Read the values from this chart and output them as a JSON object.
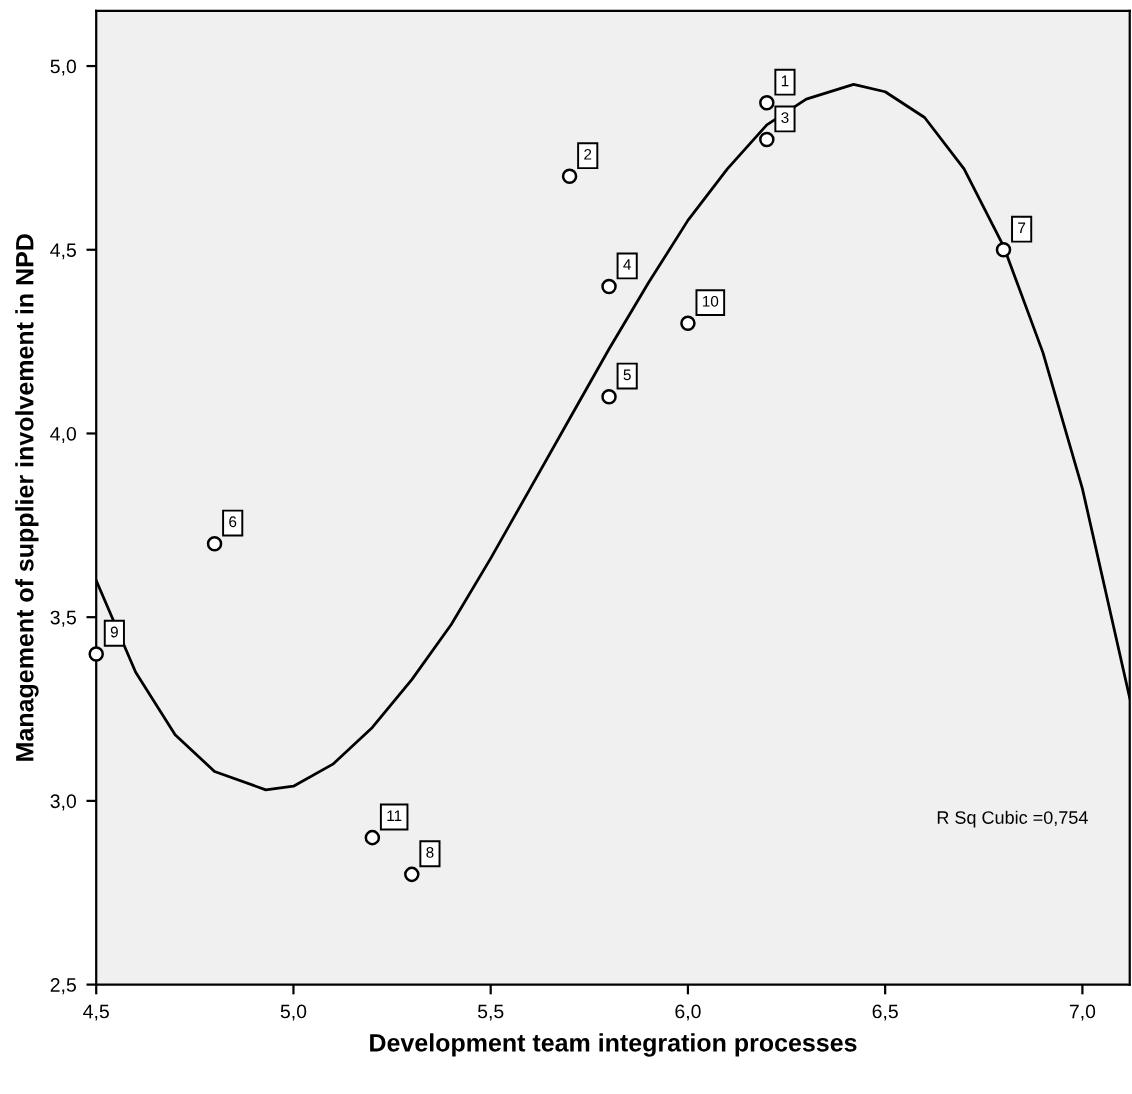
{
  "chart_data": {
    "type": "scatter",
    "xlabel": "Development team integration processes",
    "ylabel": "Management of supplier involvement in NPD",
    "xlim": [
      4.5,
      7.12
    ],
    "ylim": [
      2.5,
      5.15
    ],
    "xticks": [
      {
        "value": 4.5,
        "label": "4,5"
      },
      {
        "value": 5.0,
        "label": "5,0"
      },
      {
        "value": 5.5,
        "label": "5,5"
      },
      {
        "value": 6.0,
        "label": "6,0"
      },
      {
        "value": 6.5,
        "label": "6,5"
      },
      {
        "value": 7.0,
        "label": "7,0"
      }
    ],
    "yticks": [
      {
        "value": 2.5,
        "label": "2,5"
      },
      {
        "value": 3.0,
        "label": "3,0"
      },
      {
        "value": 3.5,
        "label": "3,5"
      },
      {
        "value": 4.0,
        "label": "4,0"
      },
      {
        "value": 4.5,
        "label": "4,5"
      },
      {
        "value": 5.0,
        "label": "5,0"
      }
    ],
    "series": [
      {
        "marker": "circle",
        "color": "#000000",
        "x": [
          6.2,
          5.7,
          6.2,
          5.8,
          5.8,
          4.8,
          6.8,
          5.3,
          4.5,
          6.0,
          5.2
        ],
        "values": [
          4.9,
          4.7,
          4.8,
          4.4,
          4.1,
          3.7,
          4.5,
          2.8,
          3.4,
          4.3,
          2.9
        ]
      },
      {
        "type": "line",
        "marker": "none",
        "color": "#000000",
        "x": [
          4.5,
          4.6,
          4.7,
          4.8,
          4.93,
          5.0,
          5.1,
          5.2,
          5.3,
          5.4,
          5.5,
          5.6,
          5.7,
          5.8,
          5.9,
          6.0,
          6.1,
          6.2,
          6.3,
          6.42,
          6.5,
          6.6,
          6.7,
          6.8,
          6.9,
          7.0,
          7.12
        ],
        "values": [
          3.6,
          3.35,
          3.18,
          3.08,
          3.03,
          3.04,
          3.1,
          3.2,
          3.33,
          3.48,
          3.66,
          3.85,
          4.04,
          4.23,
          4.41,
          4.58,
          4.72,
          4.84,
          4.91,
          4.95,
          4.93,
          4.86,
          4.72,
          4.51,
          4.22,
          3.85,
          3.28
        ]
      }
    ],
    "annotations": [
      {
        "text": "1",
        "x": 6.2,
        "y": 4.9
      },
      {
        "text": "2",
        "x": 5.7,
        "y": 4.7
      },
      {
        "text": "3",
        "x": 6.2,
        "y": 4.8
      },
      {
        "text": "4",
        "x": 5.8,
        "y": 4.4
      },
      {
        "text": "5",
        "x": 5.8,
        "y": 4.1
      },
      {
        "text": "6",
        "x": 4.8,
        "y": 3.7
      },
      {
        "text": "7",
        "x": 6.8,
        "y": 4.5
      },
      {
        "text": "8",
        "x": 5.3,
        "y": 2.8
      },
      {
        "text": "9",
        "x": 4.5,
        "y": 3.4
      },
      {
        "text": "10",
        "x": 6.0,
        "y": 4.3
      },
      {
        "text": "11",
        "x": 5.2,
        "y": 2.9
      },
      "R Sq Cubic =0,754"
    ]
  }
}
